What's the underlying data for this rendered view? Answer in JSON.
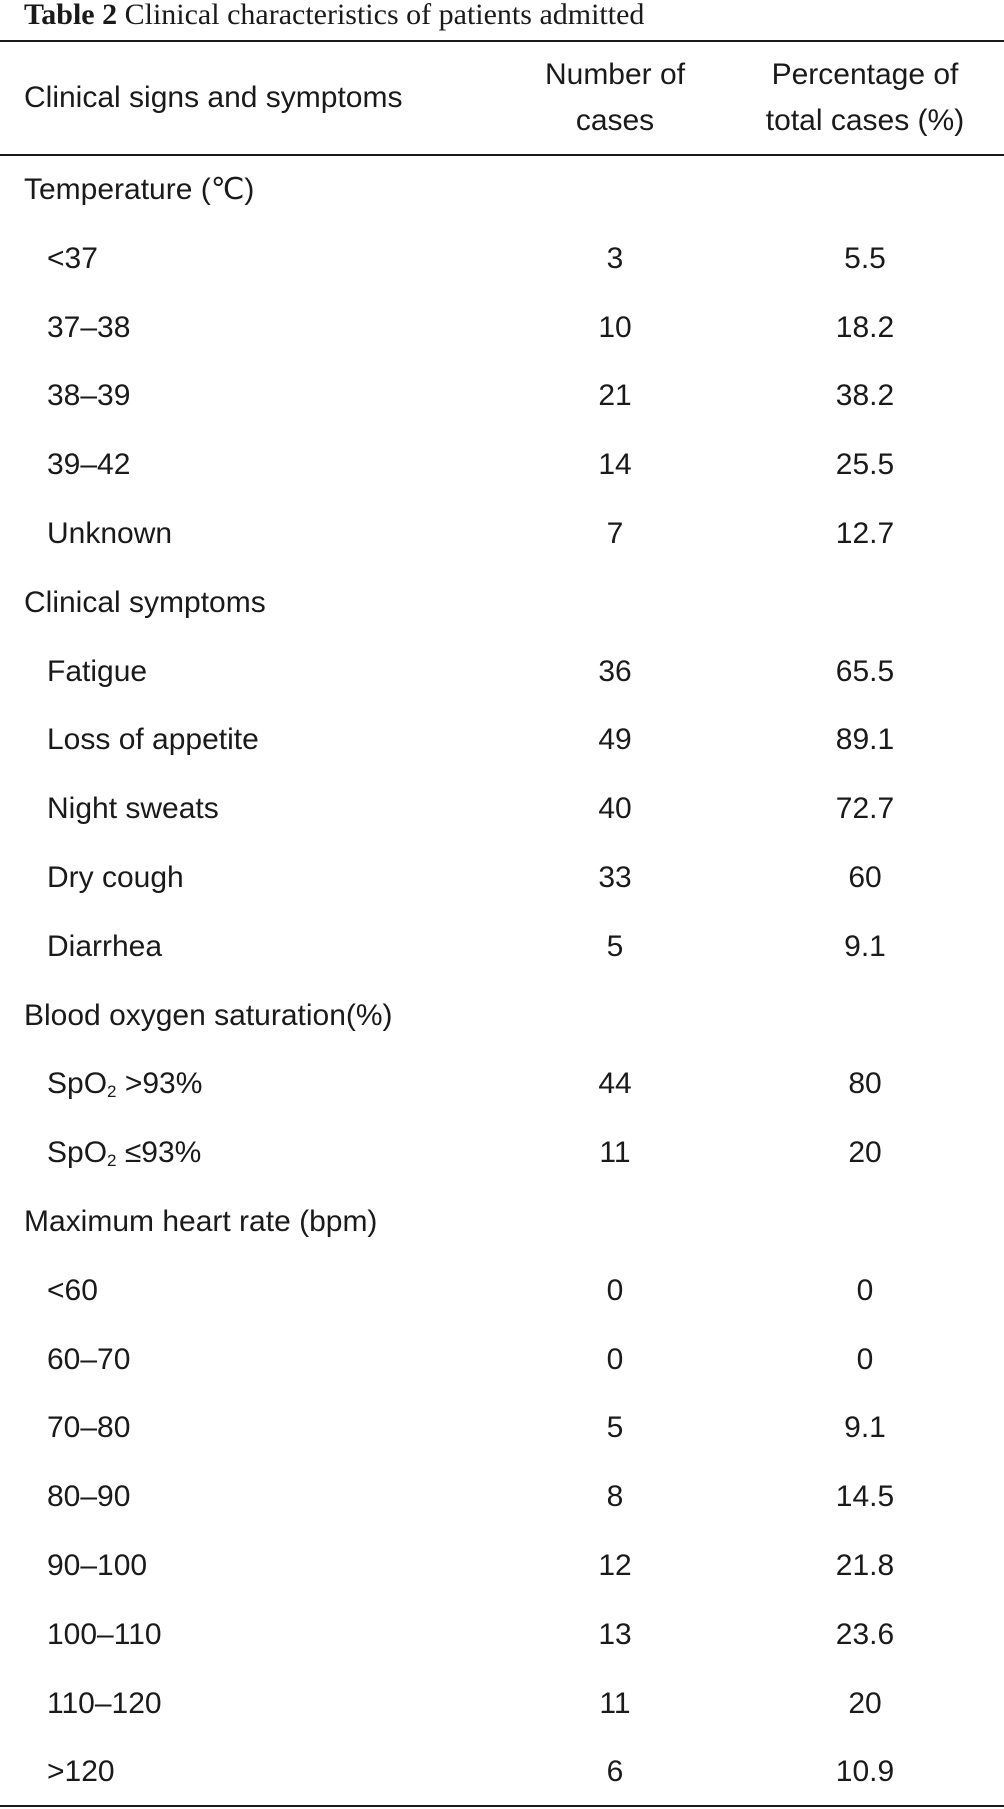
{
  "table": {
    "caption_prefix": "Table 2",
    "caption_text": "Clinical characteristics of patients admitted",
    "columns": {
      "label": "Clinical signs and symptoms",
      "num_line1": "Number of",
      "num_line2": "cases",
      "pct_line1": "Percentage of",
      "pct_line2": "total cases (%)"
    },
    "rows": [
      {
        "type": "section",
        "label": "Temperature (℃)"
      },
      {
        "type": "item",
        "label": "<37",
        "num": "3",
        "pct": "5.5"
      },
      {
        "type": "item",
        "label": "37–38",
        "num": "10",
        "pct": "18.2"
      },
      {
        "type": "item",
        "label": "38–39",
        "num": "21",
        "pct": "38.2"
      },
      {
        "type": "item",
        "label": "39–42",
        "num": "14",
        "pct": "25.5"
      },
      {
        "type": "item",
        "label": "Unknown",
        "num": "7",
        "pct": "12.7"
      },
      {
        "type": "section",
        "label": "Clinical symptoms"
      },
      {
        "type": "item",
        "label": "Fatigue",
        "num": "36",
        "pct": "65.5"
      },
      {
        "type": "item",
        "label": "Loss of appetite",
        "num": "49",
        "pct": "89.1"
      },
      {
        "type": "item",
        "label": "Night sweats",
        "num": "40",
        "pct": "72.7"
      },
      {
        "type": "item",
        "label": "Dry cough",
        "num": "33",
        "pct": "60"
      },
      {
        "type": "item",
        "label": "Diarrhea",
        "num": "5",
        "pct": "9.1"
      },
      {
        "type": "section",
        "label": "Blood oxygen saturation(%)"
      },
      {
        "type": "item",
        "label_pre": "SpO",
        "label_sub": "2",
        "label_post": " >93%",
        "num": "44",
        "pct": "80"
      },
      {
        "type": "item",
        "label_pre": "SpO",
        "label_sub": "2",
        "label_post": " ≤93%",
        "num": "11",
        "pct": "20"
      },
      {
        "type": "section",
        "label": "Maximum heart rate (bpm)"
      },
      {
        "type": "item",
        "label": "<60",
        "num": "0",
        "pct": "0"
      },
      {
        "type": "item",
        "label": "60–70",
        "num": "0",
        "pct": "0"
      },
      {
        "type": "item",
        "label": "70–80",
        "num": "5",
        "pct": "9.1"
      },
      {
        "type": "item",
        "label": "80–90",
        "num": "8",
        "pct": "14.5"
      },
      {
        "type": "item",
        "label": "90–100",
        "num": "12",
        "pct": "21.8"
      },
      {
        "type": "item",
        "label": "100–110",
        "num": "13",
        "pct": "23.6"
      },
      {
        "type": "item",
        "label": "110–120",
        "num": "11",
        "pct": "20"
      },
      {
        "type": "item",
        "label": ">120",
        "num": "6",
        "pct": "10.9"
      }
    ]
  }
}
